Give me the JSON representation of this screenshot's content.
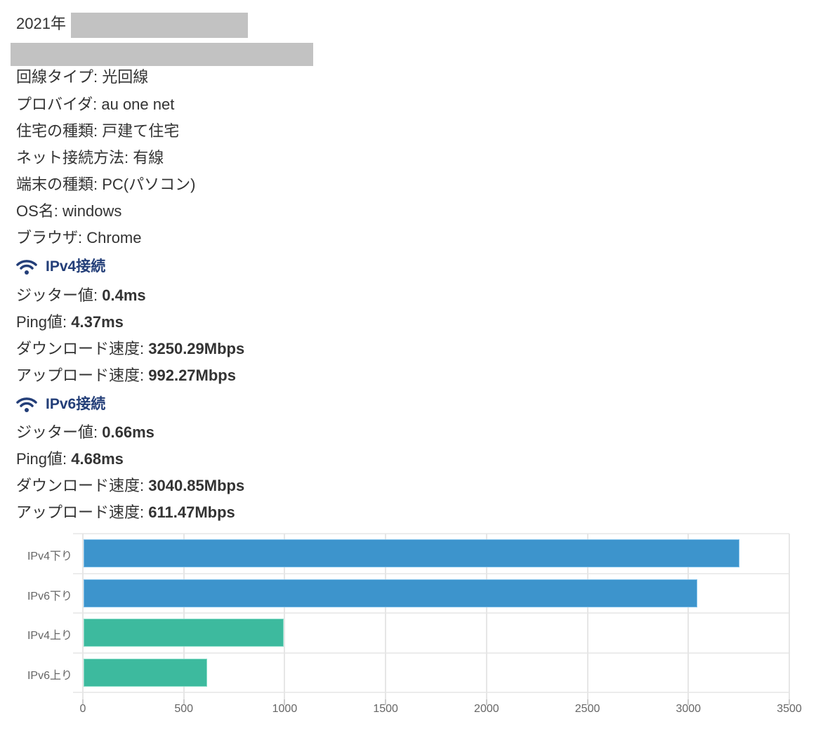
{
  "header": {
    "year_prefix": "2021年"
  },
  "info": [
    {
      "label": "回線タイプ",
      "value": "光回線"
    },
    {
      "label": "プロバイダ",
      "value": "au one net"
    },
    {
      "label": "住宅の種類",
      "value": "戸建て住宅"
    },
    {
      "label": "ネット接続方法",
      "value": "有線"
    },
    {
      "label": "端末の種類",
      "value": "PC(パソコン)"
    },
    {
      "label": "OS名",
      "value": "windows"
    },
    {
      "label": "ブラウザ",
      "value": "Chrome"
    }
  ],
  "ipv4": {
    "heading": "IPv4接続",
    "icon": "wifi-icon",
    "jitter_label": "ジッター値",
    "jitter": "0.4ms",
    "ping_label": "Ping値",
    "ping": "4.37ms",
    "download_label": "ダウンロード速度",
    "download": "3250.29Mbps",
    "upload_label": "アップロード速度",
    "upload": "992.27Mbps"
  },
  "ipv6": {
    "heading": "IPv6接続",
    "icon": "wifi-icon",
    "jitter_label": "ジッター値",
    "jitter": "0.66ms",
    "ping_label": "Ping値",
    "ping": "4.68ms",
    "download_label": "ダウンロード速度",
    "download": "3040.85Mbps",
    "upload_label": "アップロード速度",
    "upload": "611.47Mbps"
  },
  "colors": {
    "heading": "#233e78",
    "download_bar": "#3d94cc",
    "upload_bar": "#3dba9e",
    "redaction": "#c2c2c2"
  },
  "chart_data": {
    "type": "bar",
    "orientation": "horizontal",
    "title": "",
    "xlabel": "",
    "ylabel": "",
    "categories": [
      "IPv4下り",
      "IPv6下り",
      "IPv4上り",
      "IPv6上り"
    ],
    "values": [
      3250.29,
      3040.85,
      992.27,
      611.47
    ],
    "bar_colors": [
      "#3d94cc",
      "#3d94cc",
      "#3dba9e",
      "#3dba9e"
    ],
    "xlim": [
      0,
      3500
    ],
    "xticks": [
      "0",
      "500",
      "1000",
      "1500",
      "2000",
      "2500",
      "3000",
      "3500"
    ],
    "grid": true,
    "legend": false
  }
}
